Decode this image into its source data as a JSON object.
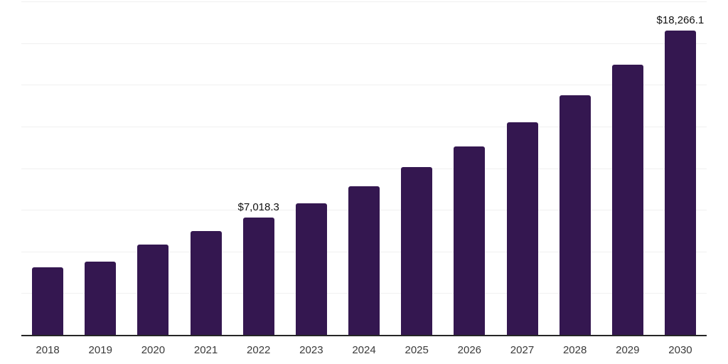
{
  "chart_data": {
    "type": "bar",
    "title": "",
    "xlabel": "",
    "ylabel": "",
    "categories": [
      "2018",
      "2019",
      "2020",
      "2021",
      "2022",
      "2023",
      "2024",
      "2025",
      "2026",
      "2027",
      "2028",
      "2029",
      "2030"
    ],
    "values": [
      4040.7,
      4396.9,
      5414.5,
      6232.8,
      7018.3,
      7909.7,
      8914.4,
      10046.7,
      11322.9,
      12760.9,
      14381.7,
      16208.3,
      18266.1
    ],
    "labeled_points": {
      "2022": "$7,018.3",
      "2030": "$18,266.1"
    },
    "ylim": [
      0,
      20000
    ],
    "grid_step": 2500,
    "grid": true,
    "legend_position": "none",
    "colors": {
      "bar": "#341750",
      "axis_line": "#262626",
      "gridline": "#f0f0f0",
      "value_label": "#111111",
      "tick_label": "#3a3a3a",
      "background": "#ffffff"
    }
  }
}
